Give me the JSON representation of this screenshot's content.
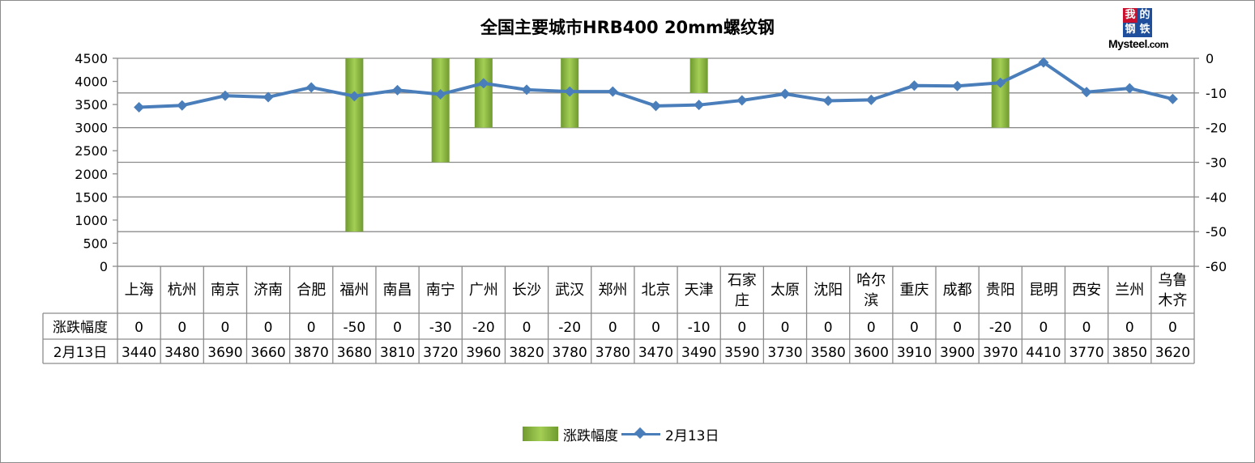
{
  "title": "全国主要城市HRB400 20mm螺纹钢",
  "logo": {
    "chars": [
      "我",
      "的",
      "钢",
      "铁"
    ],
    "brand": "Mysteel",
    "suffix": ".com"
  },
  "colors": {
    "bar": "#8ab840",
    "bar_dark": "#6f9a2f",
    "line": "#4a7ebb",
    "grid": "#8c8c8c"
  },
  "chart_data": {
    "type": "bar+line",
    "categories": [
      "上海",
      "杭州",
      "南京",
      "济南",
      "合肥",
      "福州",
      "南昌",
      "南宁",
      "广州",
      "长沙",
      "武汉",
      "郑州",
      "北京",
      "天津",
      "石家庄",
      "太原",
      "沈阳",
      "哈尔滨",
      "重庆",
      "成都",
      "贵阳",
      "昆明",
      "西安",
      "兰州",
      "乌鲁木齐"
    ],
    "category_lines": [
      [
        "上海"
      ],
      [
        "杭州"
      ],
      [
        "南京"
      ],
      [
        "济南"
      ],
      [
        "合肥"
      ],
      [
        "福州"
      ],
      [
        "南昌"
      ],
      [
        "南宁"
      ],
      [
        "广州"
      ],
      [
        "长沙"
      ],
      [
        "武汉"
      ],
      [
        "郑州"
      ],
      [
        "北京"
      ],
      [
        "天津"
      ],
      [
        "石家",
        "庄"
      ],
      [
        "太原"
      ],
      [
        "沈阳"
      ],
      [
        "哈尔",
        "滨"
      ],
      [
        "重庆"
      ],
      [
        "成都"
      ],
      [
        "贵阳"
      ],
      [
        "昆明"
      ],
      [
        "西安"
      ],
      [
        "兰州"
      ],
      [
        "乌鲁",
        "木齐"
      ]
    ],
    "series": [
      {
        "name": "涨跌幅度",
        "type": "bar",
        "axis": "right",
        "values": [
          0,
          0,
          0,
          0,
          0,
          -50,
          0,
          -30,
          -20,
          0,
          -20,
          0,
          0,
          -10,
          0,
          0,
          0,
          0,
          0,
          0,
          -20,
          0,
          0,
          0,
          0
        ]
      },
      {
        "name": "2月13日",
        "type": "line",
        "axis": "left",
        "values": [
          3440,
          3480,
          3690,
          3660,
          3870,
          3680,
          3810,
          3720,
          3960,
          3820,
          3780,
          3780,
          3470,
          3490,
          3590,
          3730,
          3580,
          3600,
          3910,
          3900,
          3970,
          4410,
          3770,
          3850,
          3620
        ]
      }
    ],
    "y_left": {
      "min": 0,
      "max": 4500,
      "step": 500,
      "ticks": [
        "0",
        "500",
        "1000",
        "1500",
        "2000",
        "2500",
        "3000",
        "3500",
        "4000",
        "4500"
      ]
    },
    "y_right": {
      "min": -60,
      "max": 0,
      "step": 10,
      "ticks": [
        "0",
        "-10",
        "-20",
        "-30",
        "-40",
        "-50",
        "-60"
      ]
    },
    "data_table": true,
    "legend_position": "bottom"
  }
}
